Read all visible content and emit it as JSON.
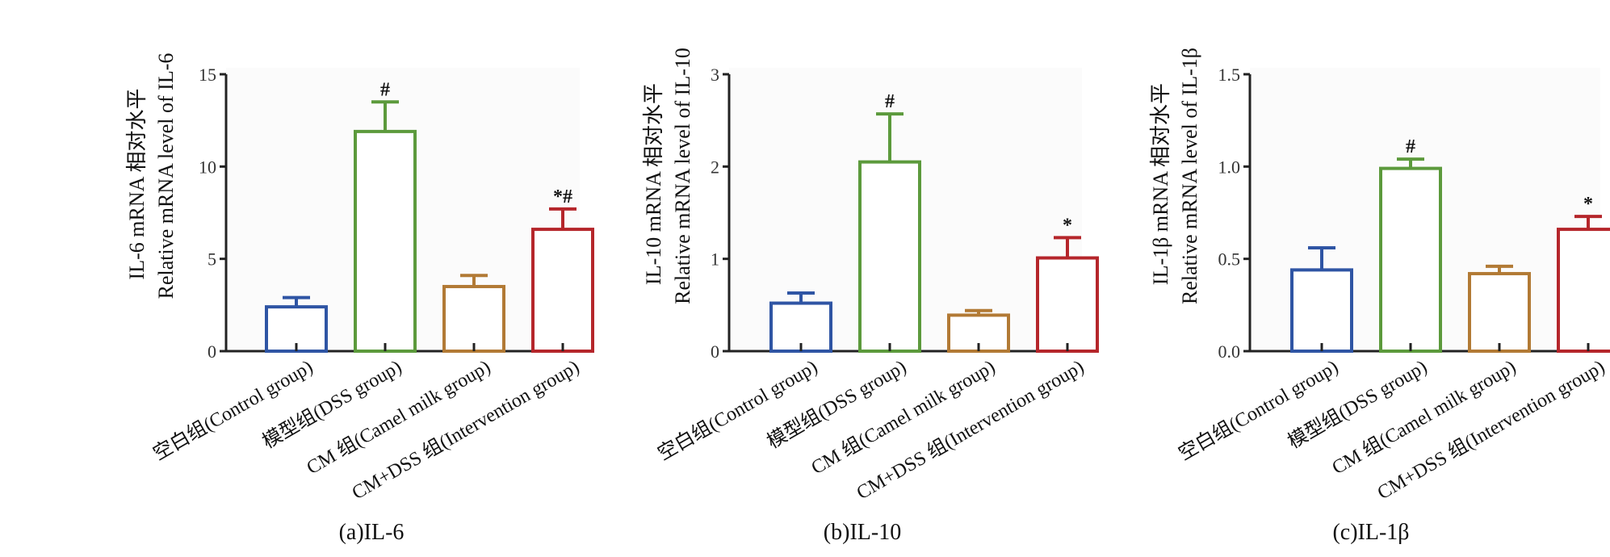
{
  "chart_data": [
    {
      "type": "bar",
      "caption": "(a)IL-6",
      "ylabel_cn": "IL-6 mRNA 相对水平",
      "ylabel_en": "Relative mRNA level of IL-6",
      "ylim": [
        0,
        15
      ],
      "yticks": [
        "0",
        "5",
        "10",
        "15"
      ],
      "ytick_values": [
        0,
        5,
        10,
        15
      ],
      "categories": [
        "空白组(Control group)",
        "模型组(DSS group)",
        "CM 组(Camel milk group)",
        "CM+DSS 组(Intervention group)"
      ],
      "values": [
        2.4,
        11.9,
        3.5,
        6.6
      ],
      "errors": [
        0.5,
        1.6,
        0.6,
        1.1
      ],
      "annotations": [
        "",
        "#",
        "",
        "*#"
      ]
    },
    {
      "type": "bar",
      "caption": "(b)IL-10",
      "ylabel_cn": "IL-10 mRNA 相对水平",
      "ylabel_en": "Relative mRNA level of IL-10",
      "ylim": [
        0,
        3
      ],
      "yticks": [
        "0",
        "1",
        "2",
        "3"
      ],
      "ytick_values": [
        0,
        1,
        2,
        3
      ],
      "categories": [
        "空白组(Control group)",
        "模型组(DSS group)",
        "CM 组(Camel milk group)",
        "CM+DSS 组(Intervention group)"
      ],
      "values": [
        0.52,
        2.05,
        0.39,
        1.01
      ],
      "errors": [
        0.11,
        0.52,
        0.05,
        0.22
      ],
      "annotations": [
        "",
        "#",
        "",
        "*"
      ]
    },
    {
      "type": "bar",
      "caption": "(c)IL-1β",
      "ylabel_cn": "IL-1β mRNA 相对水平",
      "ylabel_en": "Relative mRNA level of IL-1β",
      "ylim": [
        0,
        1.5
      ],
      "yticks": [
        "0.0",
        "0.5",
        "1.0",
        "1.5"
      ],
      "ytick_values": [
        0,
        0.5,
        1.0,
        1.5
      ],
      "categories": [
        "空白组(Control group)",
        "模型组(DSS group)",
        "CM 组(Camel milk group)",
        "CM+DSS 组(Intervention group)"
      ],
      "values": [
        0.44,
        0.99,
        0.42,
        0.66
      ],
      "errors": [
        0.12,
        0.05,
        0.04,
        0.07
      ],
      "annotations": [
        "",
        "#",
        "",
        "*"
      ]
    }
  ],
  "colors": {
    "bars": [
      "#2f55a4",
      "#5c9a3c",
      "#b27a35",
      "#b5262b"
    ],
    "axis": "#222222",
    "text": "#111111"
  }
}
